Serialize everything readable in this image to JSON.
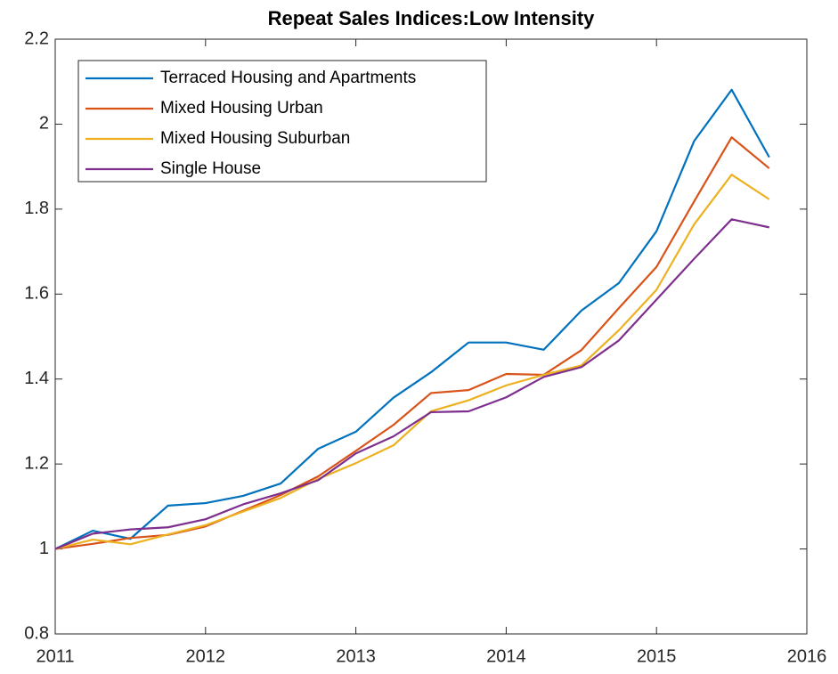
{
  "chart_data": {
    "type": "line",
    "title": "Repeat Sales Indices:Low Intensity",
    "x": [
      2011,
      2011.25,
      2011.5,
      2011.75,
      2012,
      2012.25,
      2012.5,
      2012.75,
      2013,
      2013.25,
      2013.5,
      2013.75,
      2014,
      2014.25,
      2014.5,
      2014.75,
      2015,
      2015.25,
      2015.5,
      2015.75
    ],
    "series": [
      {
        "name": "Terraced Housing and Apartments",
        "color": "#0072BD",
        "values": [
          1.0,
          1.043,
          1.024,
          1.102,
          1.108,
          1.125,
          1.154,
          1.236,
          1.276,
          1.356,
          1.416,
          1.486,
          1.486,
          1.469,
          1.561,
          1.626,
          1.748,
          1.96,
          2.081,
          1.922
        ]
      },
      {
        "name": "Mixed Housing Urban",
        "color": "#D95319",
        "values": [
          1.0,
          1.012,
          1.026,
          1.033,
          1.053,
          1.09,
          1.127,
          1.171,
          1.231,
          1.292,
          1.367,
          1.374,
          1.412,
          1.41,
          1.468,
          1.567,
          1.664,
          1.818,
          1.969,
          1.896
        ]
      },
      {
        "name": "Mixed Housing Suburban",
        "color": "#EDB120",
        "values": [
          1.0,
          1.022,
          1.011,
          1.034,
          1.056,
          1.088,
          1.12,
          1.165,
          1.202,
          1.244,
          1.324,
          1.35,
          1.385,
          1.41,
          1.432,
          1.515,
          1.61,
          1.764,
          1.881,
          1.823
        ]
      },
      {
        "name": "Single House",
        "color": "#7E2F8E",
        "values": [
          1.0,
          1.036,
          1.046,
          1.051,
          1.07,
          1.105,
          1.131,
          1.162,
          1.225,
          1.265,
          1.322,
          1.324,
          1.357,
          1.405,
          1.428,
          1.491,
          1.587,
          1.683,
          1.776,
          1.757
        ]
      }
    ],
    "xlim": [
      2011,
      2016
    ],
    "xticks": [
      2011,
      2012,
      2013,
      2014,
      2015,
      2016
    ],
    "ylim": [
      0.8,
      2.2
    ],
    "yticks": [
      0.8,
      1,
      1.2,
      1.4,
      1.6,
      1.8,
      2,
      2.2
    ],
    "legend": "upper left",
    "grid": false
  }
}
